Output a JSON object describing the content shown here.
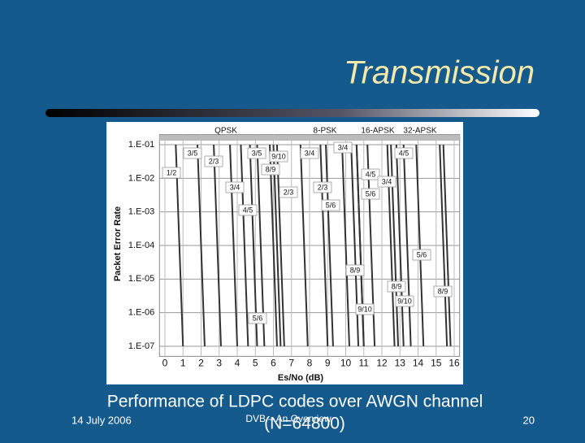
{
  "slide": {
    "title": "Transmission",
    "caption": "Performance of LDPC codes over AWGN channel",
    "caption_note": "(N=64800)",
    "date": "14 July 2006",
    "footer": "DVB – An Overview",
    "page": "20"
  },
  "chart_data": {
    "type": "line",
    "log_y": true,
    "grid": true,
    "color": "#333333",
    "x_label": "Es/No (dB)",
    "y_label": "Packet Error Rate",
    "groups": [
      "QPSK",
      "8-PSK",
      "16-APSK",
      "32-APSK"
    ],
    "xlim": [
      -0.3,
      16.3
    ],
    "xticks": [
      0,
      1,
      2,
      3,
      4,
      5,
      6,
      7,
      8,
      9,
      10,
      11,
      12,
      13,
      14,
      15,
      16
    ],
    "ylim": [
      5e-08,
      0.2
    ],
    "yticks": [
      {
        "value": 0.1,
        "label": "1.E-01"
      },
      {
        "value": 0.01,
        "label": "1.E-02"
      },
      {
        "value": 0.001,
        "label": "1.E-03"
      },
      {
        "value": 0.0001,
        "label": "1.E-04"
      },
      {
        "value": 1e-05,
        "label": "1.E-05"
      },
      {
        "value": 1e-06,
        "label": "1.E-06"
      },
      {
        "value": 1e-07,
        "label": "1.E-07"
      }
    ],
    "series": [
      {
        "x": [
          0.6,
          1.0
        ],
        "values": [
          0.1,
          1e-07
        ]
      },
      {
        "x": [
          1.8,
          2.2
        ],
        "values": [
          0.1,
          1e-07
        ]
      },
      {
        "x": [
          2.7,
          3.1
        ],
        "values": [
          0.1,
          1e-07
        ]
      },
      {
        "x": [
          3.6,
          4.0
        ],
        "values": [
          0.1,
          1e-07
        ]
      },
      {
        "x": [
          4.2,
          4.6
        ],
        "values": [
          0.1,
          1e-07
        ]
      },
      {
        "x": [
          4.7,
          5.1
        ],
        "values": [
          0.1,
          1e-07
        ]
      },
      {
        "x": [
          5.8,
          6.2
        ],
        "values": [
          0.1,
          1e-07
        ]
      },
      {
        "x": [
          6.0,
          6.4
        ],
        "values": [
          0.1,
          1e-07
        ]
      },
      {
        "x": [
          5.1,
          5.5
        ],
        "values": [
          0.1,
          1e-07
        ]
      },
      {
        "x": [
          6.2,
          6.6
        ],
        "values": [
          0.1,
          1e-07
        ]
      },
      {
        "x": [
          7.5,
          7.9
        ],
        "values": [
          0.1,
          1e-07
        ]
      },
      {
        "x": [
          8.9,
          9.3
        ],
        "values": [
          0.1,
          1e-07
        ]
      },
      {
        "x": [
          10.3,
          10.7
        ],
        "values": [
          0.1,
          1e-07
        ]
      },
      {
        "x": [
          10.6,
          11.0
        ],
        "values": [
          0.1,
          1e-07
        ]
      },
      {
        "x": [
          8.6,
          9.0
        ],
        "values": [
          0.1,
          1e-07
        ]
      },
      {
        "x": [
          9.8,
          10.2
        ],
        "values": [
          0.1,
          1e-07
        ]
      },
      {
        "x": [
          10.6,
          11.0
        ],
        "values": [
          0.1,
          1e-07
        ]
      },
      {
        "x": [
          11.2,
          11.6
        ],
        "values": [
          0.1,
          1e-07
        ]
      },
      {
        "x": [
          12.5,
          12.9
        ],
        "values": [
          0.1,
          1e-07
        ]
      },
      {
        "x": [
          12.8,
          13.2
        ],
        "values": [
          0.1,
          1e-07
        ]
      },
      {
        "x": [
          12.3,
          12.7
        ],
        "values": [
          0.1,
          1e-07
        ]
      },
      {
        "x": [
          13.2,
          13.6
        ],
        "values": [
          0.1,
          1e-07
        ]
      },
      {
        "x": [
          13.9,
          14.3
        ],
        "values": [
          0.1,
          1e-07
        ]
      },
      {
        "x": [
          15.2,
          15.6
        ],
        "values": [
          0.1,
          1e-07
        ]
      },
      {
        "x": [
          15.4,
          15.8
        ],
        "values": [
          0.1,
          1e-07
        ]
      }
    ],
    "annotations": [
      "1/2",
      "3/5",
      "2/3",
      "3/4",
      "4/5",
      "3/5",
      "9/10",
      "8/9",
      "2/3",
      "3/4",
      "2/3",
      "5/6",
      "3/4",
      "4/5",
      "5/6",
      "3/4",
      "4/5",
      "5/6",
      "8/9",
      "8/9",
      "9/10",
      "8/9",
      "9/10",
      "5/6"
    ]
  }
}
